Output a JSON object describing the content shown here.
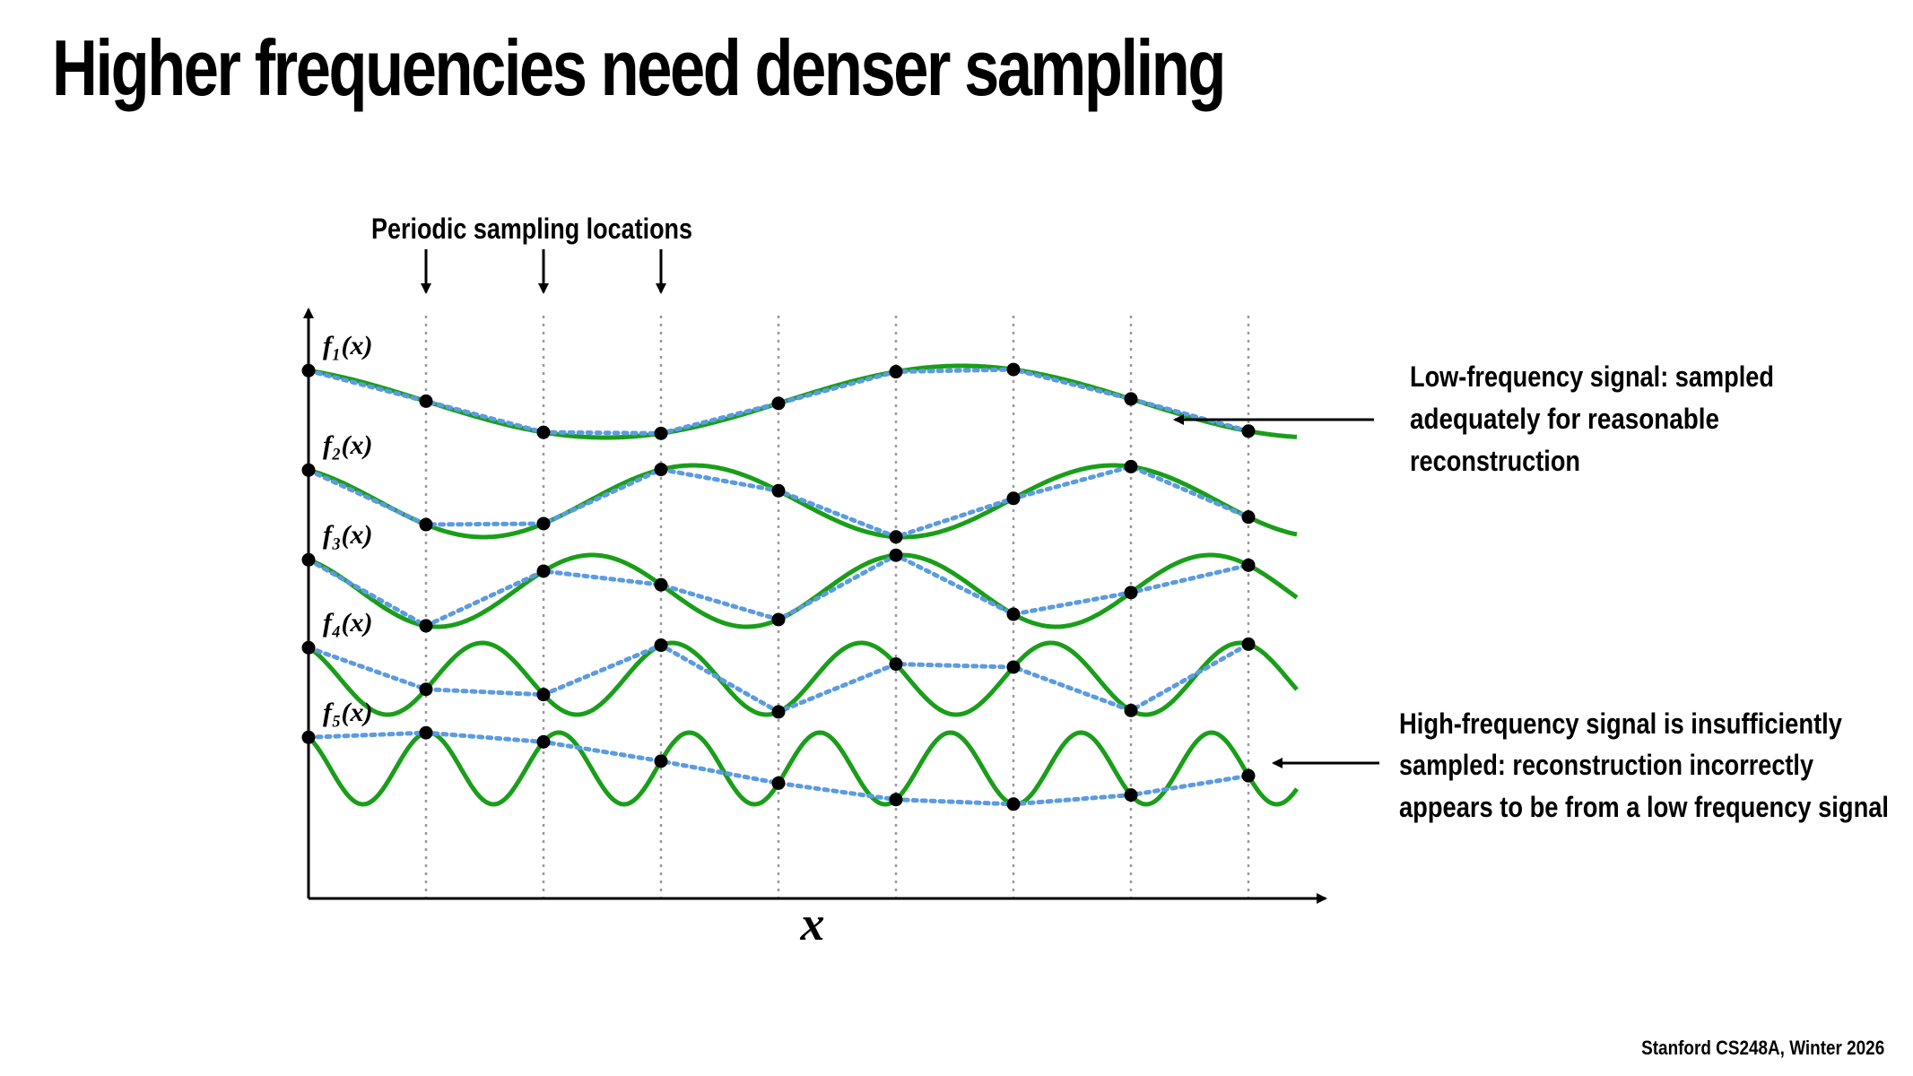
{
  "title": "Higher frequencies need denser sampling",
  "footer": "Stanford CS248A, Winter 2026",
  "diagram": {
    "sampling_label": "Periodic sampling locations",
    "axis_label": "x",
    "functions": [
      {
        "label": "f₁(x)",
        "periods_per_sample": 0.165
      },
      {
        "label": "f₂(x)",
        "periods_per_sample": 0.28
      },
      {
        "label": "f₃(x)",
        "periods_per_sample": 0.38
      },
      {
        "label": "f₄(x)",
        "periods_per_sample": 0.62
      },
      {
        "label": "f₅(x)",
        "periods_per_sample": 0.9
      }
    ],
    "annotations": [
      {
        "lines": [
          "Low-frequency signal: sampled",
          "adequately for reasonable",
          "reconstruction"
        ]
      },
      {
        "lines": [
          "High-frequency signal is insufficiently",
          "sampled: reconstruction incorrectly",
          "appears to be from a low frequency signal"
        ]
      }
    ],
    "colors": {
      "signal": "#1a9e1a",
      "reconstruction": "#5b9be0",
      "sample_point": "#000000",
      "sample_line": "#9a9a9a"
    }
  }
}
